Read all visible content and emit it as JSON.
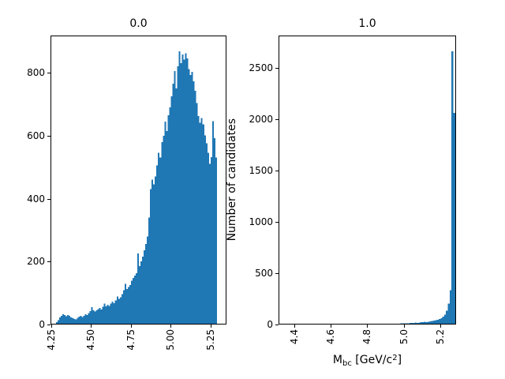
{
  "figure": {
    "background": "#ffffff",
    "bar_color": "#1f77b4",
    "spine_color": "#000000",
    "ylabel": "Number of candidates",
    "xlabel": {
      "main": "M",
      "sub": "bc",
      "mid": " [GeV/c",
      "sup": "2",
      "tail": "]"
    }
  },
  "chart_data": [
    {
      "type": "bar",
      "kind": "histogram",
      "title": "0.0",
      "xlabel": "",
      "ylabel": "",
      "grid": false,
      "legend": null,
      "bin_start": 4.28,
      "bin_width": 0.01,
      "values": [
        8,
        14,
        22,
        28,
        33,
        30,
        26,
        30,
        27,
        23,
        20,
        18,
        16,
        21,
        25,
        28,
        24,
        28,
        33,
        30,
        36,
        43,
        55,
        45,
        41,
        45,
        49,
        53,
        48,
        56,
        66,
        58,
        63,
        59,
        67,
        73,
        68,
        76,
        89,
        81,
        86,
        96,
        109,
        129,
        113,
        119,
        126,
        139,
        148,
        155,
        163,
        226,
        186,
        201,
        216,
        236,
        256,
        280,
        340,
        430,
        460,
        445,
        470,
        505,
        545,
        530,
        580,
        600,
        645,
        615,
        665,
        690,
        725,
        765,
        805,
        750,
        820,
        868,
        830,
        858,
        842,
        862,
        845,
        812,
        792,
        803,
        772,
        742,
        703,
        662,
        641,
        656,
        636,
        601,
        576,
        546,
        511,
        532,
        646,
        592,
        531
      ],
      "xlim": [
        4.245,
        5.35
      ],
      "ylim": [
        0,
        918
      ],
      "xtick_values": [
        4.25,
        4.5,
        4.75,
        5.0,
        5.25
      ],
      "xtick_labels": [
        "4.25",
        "4.50",
        "4.75",
        "5.00",
        "5.25"
      ],
      "xtick_rotation": 90,
      "ytick_values": [
        0,
        200,
        400,
        600,
        800
      ],
      "ytick_labels": [
        "0",
        "200",
        "400",
        "600",
        "800"
      ]
    },
    {
      "type": "bar",
      "kind": "histogram",
      "title": "1.0",
      "xlabel": "Mbc [GeV/c2]",
      "ylabel": "Number of candidates",
      "grid": false,
      "legend": null,
      "bin_start": 4.85,
      "bin_width": 0.01,
      "values": [
        2,
        3,
        2,
        4,
        3,
        5,
        4,
        6,
        5,
        7,
        6,
        8,
        9,
        10,
        11,
        12,
        13,
        12,
        15,
        14,
        16,
        18,
        17,
        20,
        22,
        24,
        26,
        25,
        28,
        31,
        34,
        37,
        41,
        46,
        53,
        63,
        77,
        97,
        133,
        205,
        335,
        2661,
        2061
      ],
      "xlim": [
        4.315,
        5.285
      ],
      "ylim": [
        0,
        2815
      ],
      "xtick_values": [
        4.4,
        4.6,
        4.8,
        5.0,
        5.2
      ],
      "xtick_labels": [
        "4.4",
        "4.6",
        "4.8",
        "5.0",
        "5.2"
      ],
      "xtick_rotation": 90,
      "ytick_values": [
        0,
        500,
        1000,
        1500,
        2000,
        2500
      ],
      "ytick_labels": [
        "0",
        "500",
        "1000",
        "1500",
        "2000",
        "2500"
      ]
    }
  ]
}
